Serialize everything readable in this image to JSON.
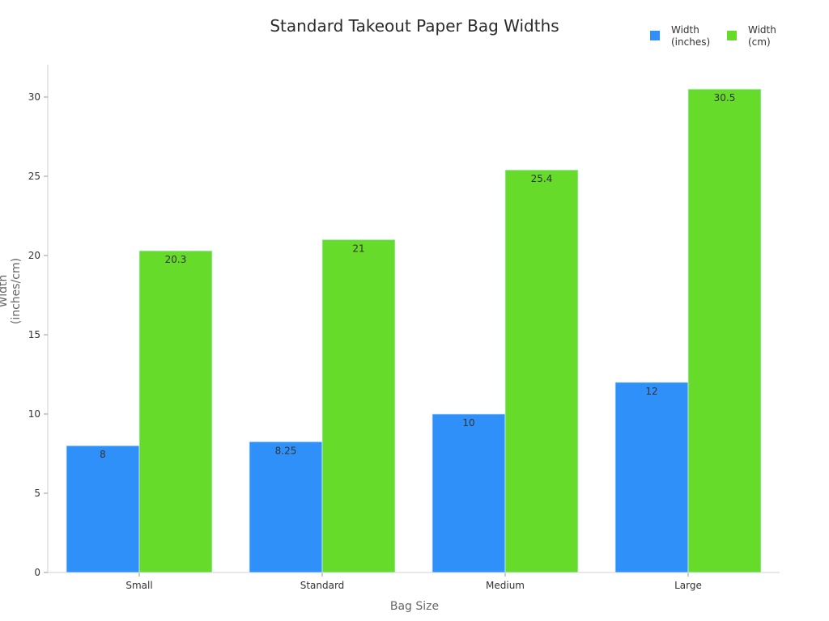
{
  "chart_data": {
    "type": "bar",
    "title": "Standard Takeout Paper Bag Widths",
    "xlabel": "Bag Size",
    "ylabel": "Width (inches/cm)",
    "categories": [
      "Small",
      "Standard",
      "Medium",
      "Large"
    ],
    "series": [
      {
        "name": "Width (inches)",
        "color": "#2e90f8",
        "values": [
          8,
          8.25,
          10,
          12
        ],
        "labels": [
          "8",
          "8.25",
          "10",
          "12"
        ]
      },
      {
        "name": "Width (cm)",
        "color": "#66db29",
        "values": [
          20.3,
          21,
          25.4,
          30.5
        ],
        "labels": [
          "20.3",
          "21",
          "25.4",
          "30.5"
        ]
      }
    ],
    "ylim": [
      0,
      32
    ],
    "yticks": [
      0,
      5,
      10,
      15,
      20,
      25,
      30
    ],
    "grid": false,
    "legend_position": "top-right"
  },
  "legend": {
    "items": [
      {
        "line1": "Width",
        "line2": "(inches)",
        "color": "#2e90f8"
      },
      {
        "line1": "Width",
        "line2": "(cm)",
        "color": "#66db29"
      }
    ]
  }
}
